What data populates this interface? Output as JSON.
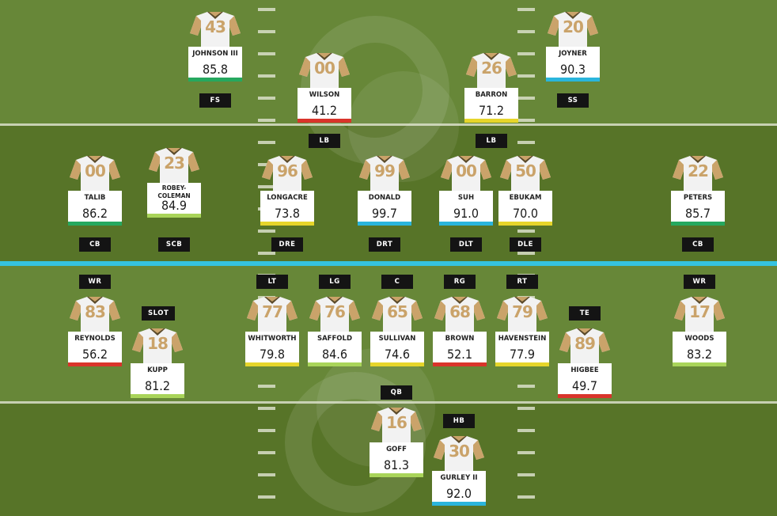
{
  "colors": {
    "field_dark": "#577428",
    "field_light": "#6a8a3c",
    "scrimmage": "#35c3e0",
    "jersey": "#f2f2f2",
    "jersey_trim": "#caa36a",
    "rating_colors": {
      "elite": "#2ab5dc",
      "great": "#26a85f",
      "good": "#a9d45a",
      "average": "#e6d52b",
      "poor": "#d9342b"
    }
  },
  "players": [
    {
      "id": "fs",
      "number": "43",
      "name": [
        "JOHNSON III"
      ],
      "rating": "85.8",
      "tier": "great"
    },
    {
      "id": "lb1",
      "number": "00",
      "name": [
        "WILSON"
      ],
      "rating": "41.2",
      "tier": "poor"
    },
    {
      "id": "lb2",
      "number": "26",
      "name": [
        "BARRON"
      ],
      "rating": "71.2",
      "tier": "average"
    },
    {
      "id": "ss",
      "number": "20",
      "name": [
        "JOYNER"
      ],
      "rating": "90.3",
      "tier": "elite"
    },
    {
      "id": "cb1",
      "number": "00",
      "name": [
        "TALIB"
      ],
      "rating": "86.2",
      "tier": "great"
    },
    {
      "id": "scb",
      "number": "23",
      "name": [
        "ROBEY-",
        "COLEMAN"
      ],
      "rating": "84.9",
      "tier": "good"
    },
    {
      "id": "dre",
      "number": "96",
      "name": [
        "LONGACRE"
      ],
      "rating": "73.8",
      "tier": "average"
    },
    {
      "id": "drt",
      "number": "99",
      "name": [
        "DONALD"
      ],
      "rating": "99.7",
      "tier": "elite"
    },
    {
      "id": "dlt",
      "number": "00",
      "name": [
        "SUH"
      ],
      "rating": "91.0",
      "tier": "elite"
    },
    {
      "id": "dle",
      "number": "50",
      "name": [
        "EBUKAM"
      ],
      "rating": "70.0",
      "tier": "average"
    },
    {
      "id": "cb2",
      "number": "22",
      "name": [
        "PETERS"
      ],
      "rating": "85.7",
      "tier": "great"
    },
    {
      "id": "wr1",
      "number": "83",
      "name": [
        "REYNOLDS"
      ],
      "rating": "56.2",
      "tier": "poor"
    },
    {
      "id": "slot",
      "number": "18",
      "name": [
        "KUPP"
      ],
      "rating": "81.2",
      "tier": "good"
    },
    {
      "id": "lt",
      "number": "77",
      "name": [
        "WHITWORTH"
      ],
      "rating": "79.8",
      "tier": "average"
    },
    {
      "id": "lg",
      "number": "76",
      "name": [
        "SAFFOLD"
      ],
      "rating": "84.6",
      "tier": "good"
    },
    {
      "id": "c",
      "number": "65",
      "name": [
        "SULLIVAN"
      ],
      "rating": "74.6",
      "tier": "average"
    },
    {
      "id": "rg",
      "number": "68",
      "name": [
        "BROWN"
      ],
      "rating": "52.1",
      "tier": "poor"
    },
    {
      "id": "rt",
      "number": "79",
      "name": [
        "HAVENSTEIN"
      ],
      "rating": "77.9",
      "tier": "average"
    },
    {
      "id": "te",
      "number": "89",
      "name": [
        "HIGBEE"
      ],
      "rating": "49.7",
      "tier": "poor"
    },
    {
      "id": "wr2",
      "number": "17",
      "name": [
        "WOODS"
      ],
      "rating": "83.2",
      "tier": "good"
    },
    {
      "id": "qb",
      "number": "16",
      "name": [
        "GOFF"
      ],
      "rating": "81.3",
      "tier": "good"
    },
    {
      "id": "hb",
      "number": "30",
      "name": [
        "GURLEY II"
      ],
      "rating": "92.0",
      "tier": "elite"
    }
  ],
  "positions": [
    {
      "id": "fs",
      "label": "FS"
    },
    {
      "id": "lb1",
      "label": "LB"
    },
    {
      "id": "lb2",
      "label": "LB"
    },
    {
      "id": "ss",
      "label": "SS"
    },
    {
      "id": "cb1",
      "label": "CB"
    },
    {
      "id": "scb",
      "label": "SCB"
    },
    {
      "id": "dre",
      "label": "DRE"
    },
    {
      "id": "drt",
      "label": "DRT"
    },
    {
      "id": "dlt",
      "label": "DLT"
    },
    {
      "id": "dle",
      "label": "DLE"
    },
    {
      "id": "cb2",
      "label": "CB"
    },
    {
      "id": "wr1",
      "label": "WR"
    },
    {
      "id": "slot",
      "label": "SLOT"
    },
    {
      "id": "lt",
      "label": "LT"
    },
    {
      "id": "lg",
      "label": "LG"
    },
    {
      "id": "c",
      "label": "C"
    },
    {
      "id": "rg",
      "label": "RG"
    },
    {
      "id": "rt",
      "label": "RT"
    },
    {
      "id": "te",
      "label": "TE"
    },
    {
      "id": "wr2",
      "label": "WR"
    },
    {
      "id": "qb",
      "label": "QB"
    },
    {
      "id": "hb",
      "label": "HB"
    }
  ]
}
